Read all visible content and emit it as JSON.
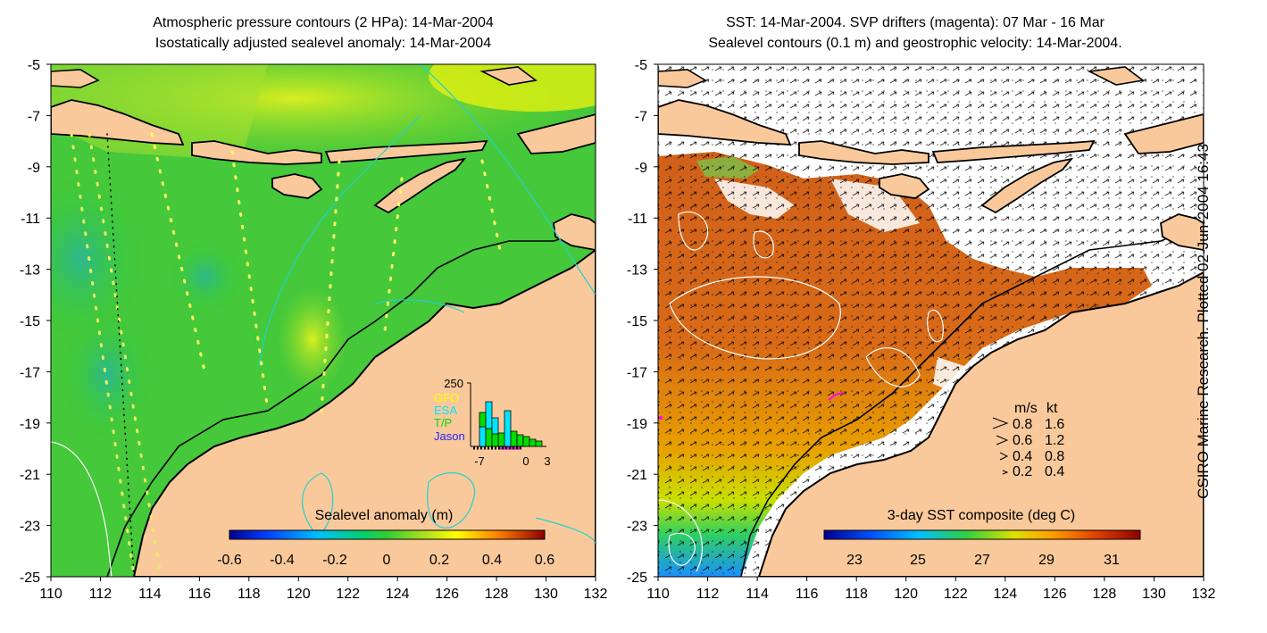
{
  "left_panel": {
    "title_line1": "Atmospheric pressure contours (2 HPa): 14-Mar-2004",
    "title_line2": "Isostatically adjusted sealevel anomaly: 14-Mar-2004",
    "colorbar_label": "Sealevel anomaly (m)",
    "colorbar_ticks": [
      "-0.6",
      "-0.4",
      "-0.2",
      "0",
      "0.2",
      "0.4",
      "0.6"
    ],
    "inset": {
      "ytick": "250",
      "legend": [
        "GFO",
        "ESA",
        "T/P",
        "Jason"
      ],
      "legend_colors": [
        "#ffff00",
        "#00e5ff",
        "#00dd00",
        "#2222ff"
      ],
      "xticks": [
        "-7",
        "0",
        "3"
      ]
    }
  },
  "right_panel": {
    "title_line1": "SST: 14-Mar-2004. SVP drifters (magenta): 07 Mar - 16 Mar",
    "title_line2": "Sealevel contours (0.1 m) and geostrophic velocity: 14-Mar-2004.",
    "colorbar_label": "3-day SST composite (deg C)",
    "colorbar_ticks": [
      "23",
      "25",
      "27",
      "29",
      "31"
    ],
    "velocity_legend": {
      "header_ms": "m/s",
      "header_kt": "kt",
      "rows": [
        {
          "ms": "0.8",
          "kt": "1.6"
        },
        {
          "ms": "0.6",
          "kt": "1.2"
        },
        {
          "ms": "0.4",
          "kt": "0.8"
        },
        {
          "ms": "0.2",
          "kt": "0.4"
        }
      ]
    }
  },
  "axes": {
    "lon_ticks": [
      "110",
      "112",
      "114",
      "116",
      "118",
      "120",
      "122",
      "124",
      "126",
      "128",
      "130",
      "132"
    ],
    "lat_ticks": [
      "-5",
      "-7",
      "-9",
      "-11",
      "-13",
      "-15",
      "-17",
      "-19",
      "-21",
      "-23",
      "-25"
    ]
  },
  "credit": "CSIRO Marine Research. Plotted 02-Jun-2004 16:43",
  "colors": {
    "land": "#f9c99b",
    "ocean_green": "#33cc33",
    "contour_cyan": "#22d0d0",
    "drifter": "#ff00ff"
  }
}
